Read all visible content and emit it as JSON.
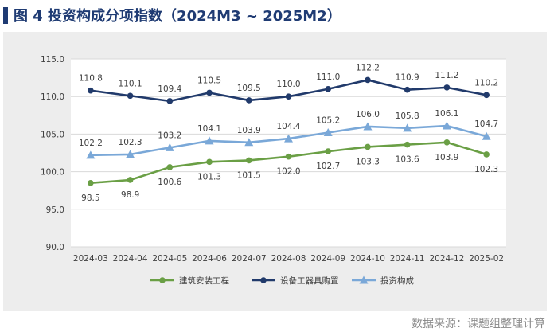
{
  "header": {
    "title": "图 4  投资构成分项指数（2024M3 ~ 2025M2）"
  },
  "source": "数据来源：课题组整理计算",
  "colors": {
    "title": "#1f3b73",
    "panel_bg": "#ededed",
    "plot_bg": "#ffffff",
    "grid": "#d9d9d9"
  },
  "chart_data": {
    "type": "line",
    "title": "",
    "xlabel": "",
    "ylabel": "",
    "ylim": [
      90.0,
      115.0
    ],
    "yticks": [
      "90.0",
      "95.0",
      "100.0",
      "105.0",
      "110.0",
      "115.0"
    ],
    "categories": [
      "2024-03",
      "2024-04",
      "2024-05",
      "2024-06",
      "2024-07",
      "2024-08",
      "2024-09",
      "2024-10",
      "2024-11",
      "2024-12",
      "2025-02"
    ],
    "grid": true,
    "legend_position": "bottom",
    "series": [
      {
        "name": "建筑安装工程",
        "color": "#6a9f45",
        "marker": "circle",
        "label_position": "below",
        "values": [
          98.5,
          98.9,
          100.6,
          101.3,
          101.5,
          102.0,
          102.7,
          103.3,
          103.6,
          103.9,
          102.3
        ]
      },
      {
        "name": "设备工器具购置",
        "color": "#213a6b",
        "marker": "circle",
        "label_position": "above",
        "values": [
          110.8,
          110.1,
          109.4,
          110.5,
          109.5,
          110.0,
          111.0,
          112.2,
          110.9,
          111.2,
          110.2
        ]
      },
      {
        "name": "投资构成",
        "color": "#7aa8d8",
        "marker": "triangle",
        "label_position": "above",
        "values": [
          102.2,
          102.3,
          103.2,
          104.1,
          103.9,
          104.4,
          105.2,
          106.0,
          105.8,
          106.1,
          104.7
        ]
      }
    ]
  }
}
